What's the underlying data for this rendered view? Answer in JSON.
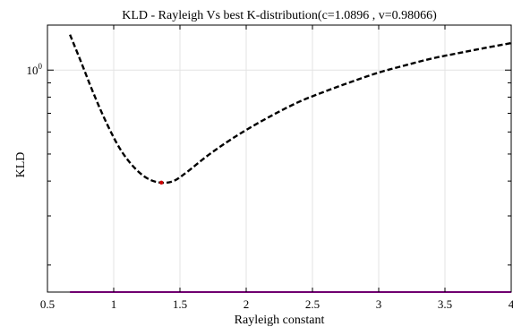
{
  "chart_data": {
    "type": "line",
    "title": "KLD - Rayleigh Vs best K-distribution(c=1.0896 , v=0.98066)",
    "xlabel": "Rayleigh constant",
    "ylabel": "KLD",
    "xlim": [
      0.5,
      4.0
    ],
    "ylim": [
      0.16,
      1.45
    ],
    "yscale": "log",
    "grid": true,
    "x_ticks": [
      0.5,
      1,
      1.5,
      2,
      2.5,
      3,
      3.5,
      4
    ],
    "x_tick_labels": [
      "0.5",
      "1",
      "1.5",
      "2",
      "2.5",
      "3",
      "3.5",
      "4"
    ],
    "y_tick_label": {
      "base": "10",
      "exponent": "0",
      "value": 1.0
    },
    "series": [
      {
        "style": "dashed",
        "color": "#000000",
        "x": [
          0.67,
          0.75,
          0.85,
          0.95,
          1.05,
          1.15,
          1.25,
          1.35,
          1.45,
          1.55,
          1.7,
          1.85,
          2.0,
          2.2,
          2.4,
          2.6,
          2.8,
          3.0,
          3.2,
          3.4,
          3.6,
          3.8,
          4.0
        ],
        "y": [
          1.34,
          1.08,
          0.82,
          0.64,
          0.52,
          0.45,
          0.41,
          0.395,
          0.4,
          0.43,
          0.49,
          0.55,
          0.61,
          0.69,
          0.77,
          0.84,
          0.91,
          0.98,
          1.04,
          1.1,
          1.15,
          1.2,
          1.25
        ]
      },
      {
        "style": "solid",
        "color": "#e000e0",
        "x": [
          0.67,
          4.0
        ],
        "y": [
          0.16,
          0.16
        ]
      }
    ],
    "marker": {
      "x": 1.36,
      "y": 0.395,
      "color": "#cc0000"
    }
  }
}
